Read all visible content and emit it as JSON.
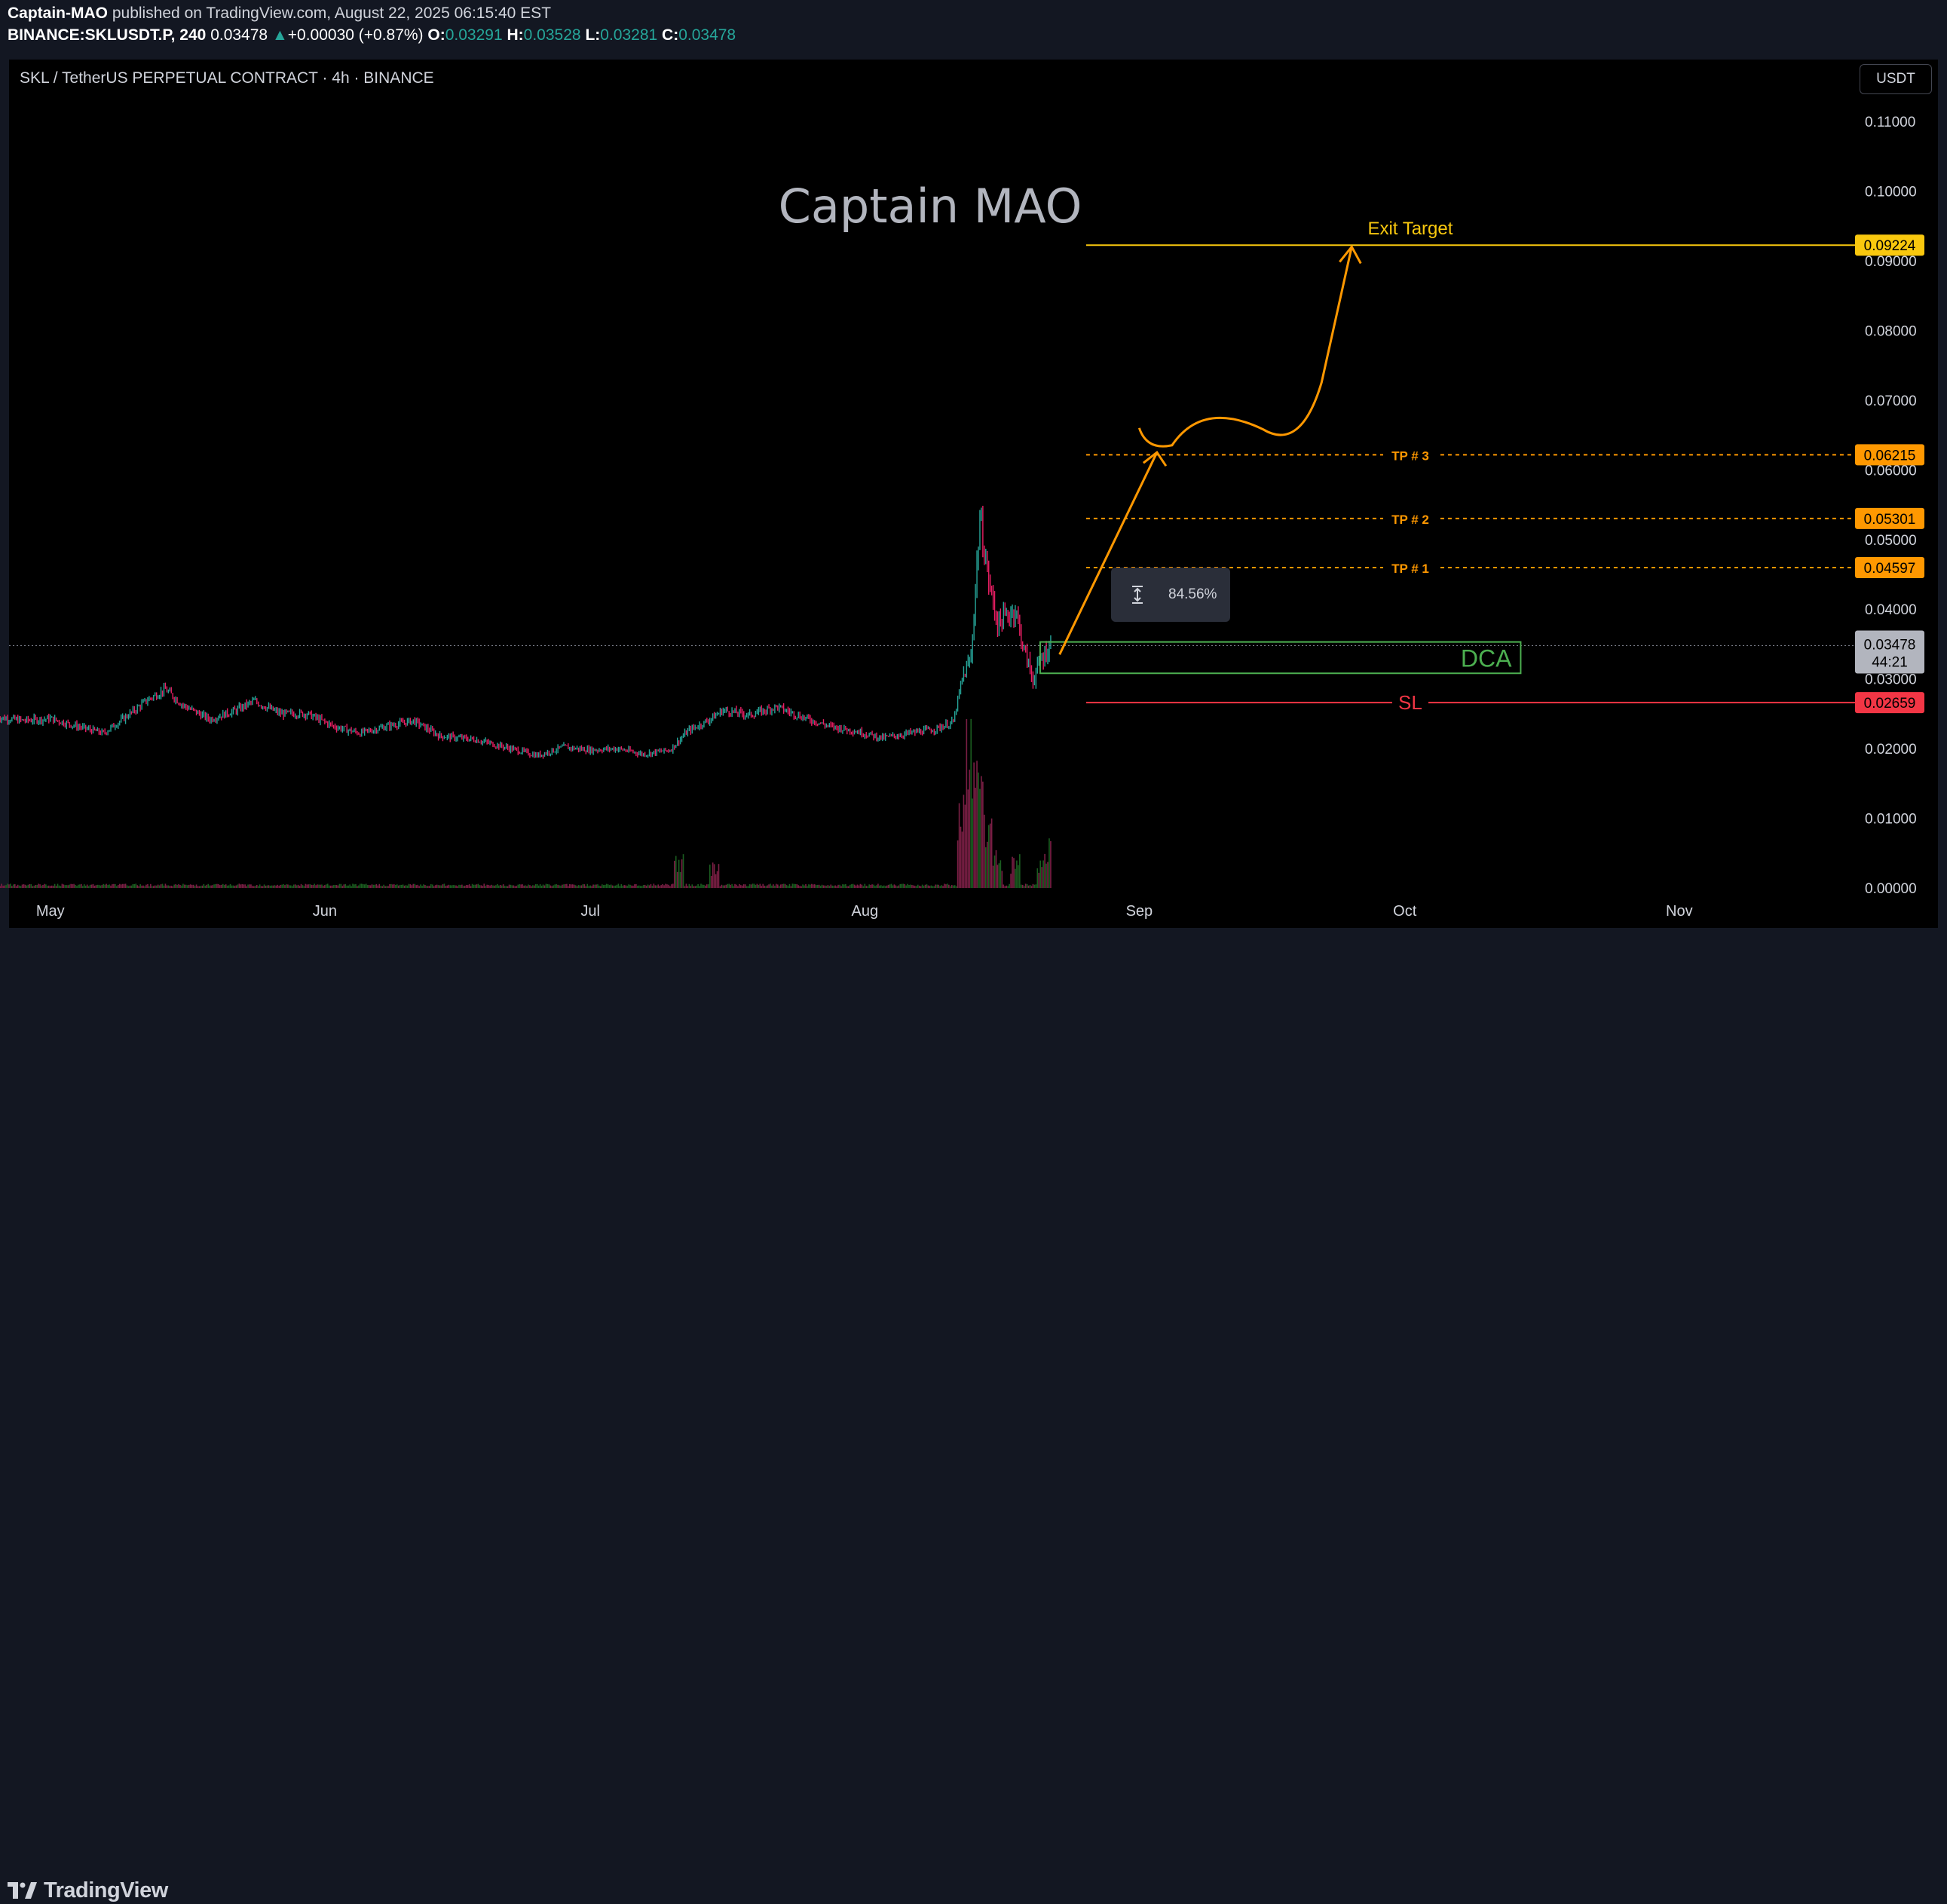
{
  "header": {
    "author": "Captain-MAO",
    "published_text": " published on TradingView.com, August 22, 2025 06:15:40 EST",
    "symbol": "BINANCE:SKLUSDT.P, 240",
    "last": "0.03478",
    "change": "+0.00030 (+0.87%)",
    "o_label": "O:",
    "o_value": "0.03291",
    "h_label": "H:",
    "h_value": "0.03528",
    "l_label": "L:",
    "l_value": "0.03281",
    "c_label": "C:",
    "c_value": "0.03478"
  },
  "chart_title": "SKL / TetherUS PERPETUAL CONTRACT · 4h · BINANCE",
  "currency": "USDT",
  "watermark": "Captain MAO",
  "measure_label": "84.56%",
  "footer": {
    "logo_text": "TradingView"
  },
  "colors": {
    "up": "#26a69a",
    "down": "#e91e63",
    "target": "#f9c80e",
    "tp": "#ff9800",
    "stop": "#f23645",
    "dca": "#4caf50",
    "arrow": "#ff9800"
  },
  "chart_data": {
    "type": "candlestick",
    "title": "SKL / TetherUS PERPETUAL CONTRACT · 4h · BINANCE",
    "x_tick_labels": [
      "May",
      "Jun",
      "Jul",
      "Aug",
      "Sep",
      "Oct",
      "Nov"
    ],
    "y_tick_labels": [
      "0.11000",
      "0.10000",
      "0.09000",
      "0.08000",
      "0.07000",
      "0.06000",
      "0.05000",
      "0.04000",
      "0.03000",
      "0.02000",
      "0.01000",
      "0.00000"
    ],
    "ylim": [
      0.0,
      0.113
    ],
    "current_price": {
      "value": "0.03478",
      "countdown": "44:21"
    },
    "price_path": [
      {
        "date": "2025-04-25",
        "price": 0.0245
      },
      {
        "date": "2025-04-28",
        "price": 0.024
      },
      {
        "date": "2025-05-01",
        "price": 0.0243
      },
      {
        "date": "2025-05-04",
        "price": 0.0232
      },
      {
        "date": "2025-05-07",
        "price": 0.0222
      },
      {
        "date": "2025-05-10",
        "price": 0.025
      },
      {
        "date": "2025-05-12",
        "price": 0.027
      },
      {
        "date": "2025-05-14",
        "price": 0.0285
      },
      {
        "date": "2025-05-16",
        "price": 0.0262
      },
      {
        "date": "2025-05-19",
        "price": 0.0242
      },
      {
        "date": "2025-05-22",
        "price": 0.0255
      },
      {
        "date": "2025-05-24",
        "price": 0.0268
      },
      {
        "date": "2025-05-27",
        "price": 0.025
      },
      {
        "date": "2025-05-30",
        "price": 0.025
      },
      {
        "date": "2025-06-02",
        "price": 0.0232
      },
      {
        "date": "2025-06-05",
        "price": 0.0222
      },
      {
        "date": "2025-06-08",
        "price": 0.0232
      },
      {
        "date": "2025-06-11",
        "price": 0.024
      },
      {
        "date": "2025-06-14",
        "price": 0.0218
      },
      {
        "date": "2025-06-18",
        "price": 0.0213
      },
      {
        "date": "2025-06-22",
        "price": 0.02
      },
      {
        "date": "2025-06-25",
        "price": 0.019
      },
      {
        "date": "2025-06-28",
        "price": 0.0202
      },
      {
        "date": "2025-07-01",
        "price": 0.0198
      },
      {
        "date": "2025-07-04",
        "price": 0.02
      },
      {
        "date": "2025-07-07",
        "price": 0.0192
      },
      {
        "date": "2025-07-10",
        "price": 0.0198
      },
      {
        "date": "2025-07-12",
        "price": 0.0225
      },
      {
        "date": "2025-07-14",
        "price": 0.0238
      },
      {
        "date": "2025-07-16",
        "price": 0.0255
      },
      {
        "date": "2025-07-19",
        "price": 0.0248
      },
      {
        "date": "2025-07-22",
        "price": 0.026
      },
      {
        "date": "2025-07-25",
        "price": 0.0245
      },
      {
        "date": "2025-07-28",
        "price": 0.0232
      },
      {
        "date": "2025-07-31",
        "price": 0.0225
      },
      {
        "date": "2025-08-03",
        "price": 0.0215
      },
      {
        "date": "2025-08-06",
        "price": 0.0222
      },
      {
        "date": "2025-08-09",
        "price": 0.0228
      },
      {
        "date": "2025-08-11",
        "price": 0.0238
      },
      {
        "date": "2025-08-12",
        "price": 0.03
      },
      {
        "date": "2025-08-13",
        "price": 0.033
      },
      {
        "date": "2025-08-14",
        "price": 0.053
      },
      {
        "date": "2025-08-15",
        "price": 0.044
      },
      {
        "date": "2025-08-16",
        "price": 0.038
      },
      {
        "date": "2025-08-18",
        "price": 0.04
      },
      {
        "date": "2025-08-19",
        "price": 0.034
      },
      {
        "date": "2025-08-20",
        "price": 0.03
      },
      {
        "date": "2025-08-21",
        "price": 0.033
      },
      {
        "date": "2025-08-22",
        "price": 0.03478
      }
    ],
    "volume_spikes": [
      {
        "date": "2025-07-11",
        "rel": 0.2
      },
      {
        "date": "2025-07-15",
        "rel": 0.15
      },
      {
        "date": "2025-08-12",
        "rel": 0.55
      },
      {
        "date": "2025-08-13",
        "rel": 1.0
      },
      {
        "date": "2025-08-14",
        "rel": 0.8
      },
      {
        "date": "2025-08-15",
        "rel": 0.45
      },
      {
        "date": "2025-08-16",
        "rel": 0.25
      },
      {
        "date": "2025-08-18",
        "rel": 0.2
      },
      {
        "date": "2025-08-21",
        "rel": 0.22
      },
      {
        "date": "2025-08-22",
        "rel": 0.3
      }
    ],
    "levels": [
      {
        "name": "Exit Target",
        "label": "Exit Target",
        "value": 0.09224,
        "value_label": "0.09224",
        "style": "solid"
      },
      {
        "name": "TP # 3",
        "label": "TP # 3",
        "value": 0.06215,
        "value_label": "0.06215",
        "style": "dashed"
      },
      {
        "name": "TP # 2",
        "label": "TP # 2",
        "value": 0.05301,
        "value_label": "0.05301",
        "style": "dashed"
      },
      {
        "name": "TP # 1",
        "label": "TP # 1",
        "value": 0.04597,
        "value_label": "0.04597",
        "style": "dashed"
      },
      {
        "name": "SL",
        "label": "SL",
        "value": 0.02659,
        "value_label": "0.02659",
        "style": "solid"
      }
    ],
    "dca_zone": {
      "label": "DCA",
      "from": 0.0308,
      "to": 0.0353,
      "start": "2025-08-22",
      "end": "2025-10-10"
    },
    "projection": [
      {
        "date": "2025-08-23",
        "price": 0.0335
      },
      {
        "date": "2025-09-03",
        "price": 0.0625
      },
      {
        "date": "2025-09-01",
        "price": 0.066
      },
      {
        "date": "2025-09-03",
        "price": 0.0646
      },
      {
        "date": "2025-09-09",
        "price": 0.0673
      },
      {
        "date": "2025-09-15",
        "price": 0.0658
      },
      {
        "date": "2025-09-25",
        "price": 0.092
      }
    ],
    "measure": {
      "label": "84.56%"
    }
  }
}
